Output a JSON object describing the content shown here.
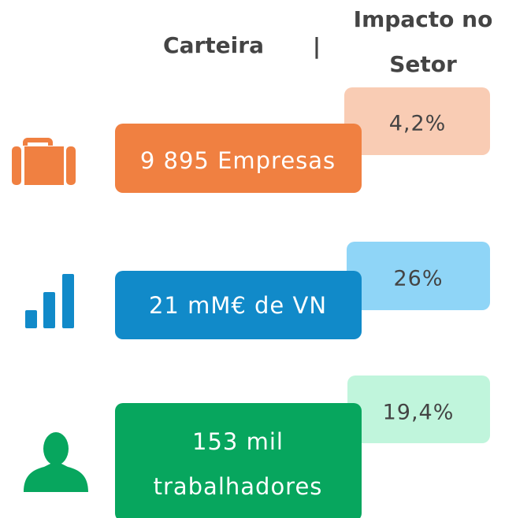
{
  "header": {
    "portfolio": "Carteira",
    "separator": "|",
    "impact": [
      "Impacto no",
      "Setor"
    ]
  },
  "rows": [
    {
      "portfolio": [
        "9 895 Empresas"
      ],
      "impact": "4,2%"
    },
    {
      "portfolio": [
        "21 mM€ de VN"
      ],
      "impact": "26%"
    },
    {
      "portfolio": [
        "153 mil",
        "trabalhadores"
      ],
      "impact": "19,4%"
    }
  ]
}
